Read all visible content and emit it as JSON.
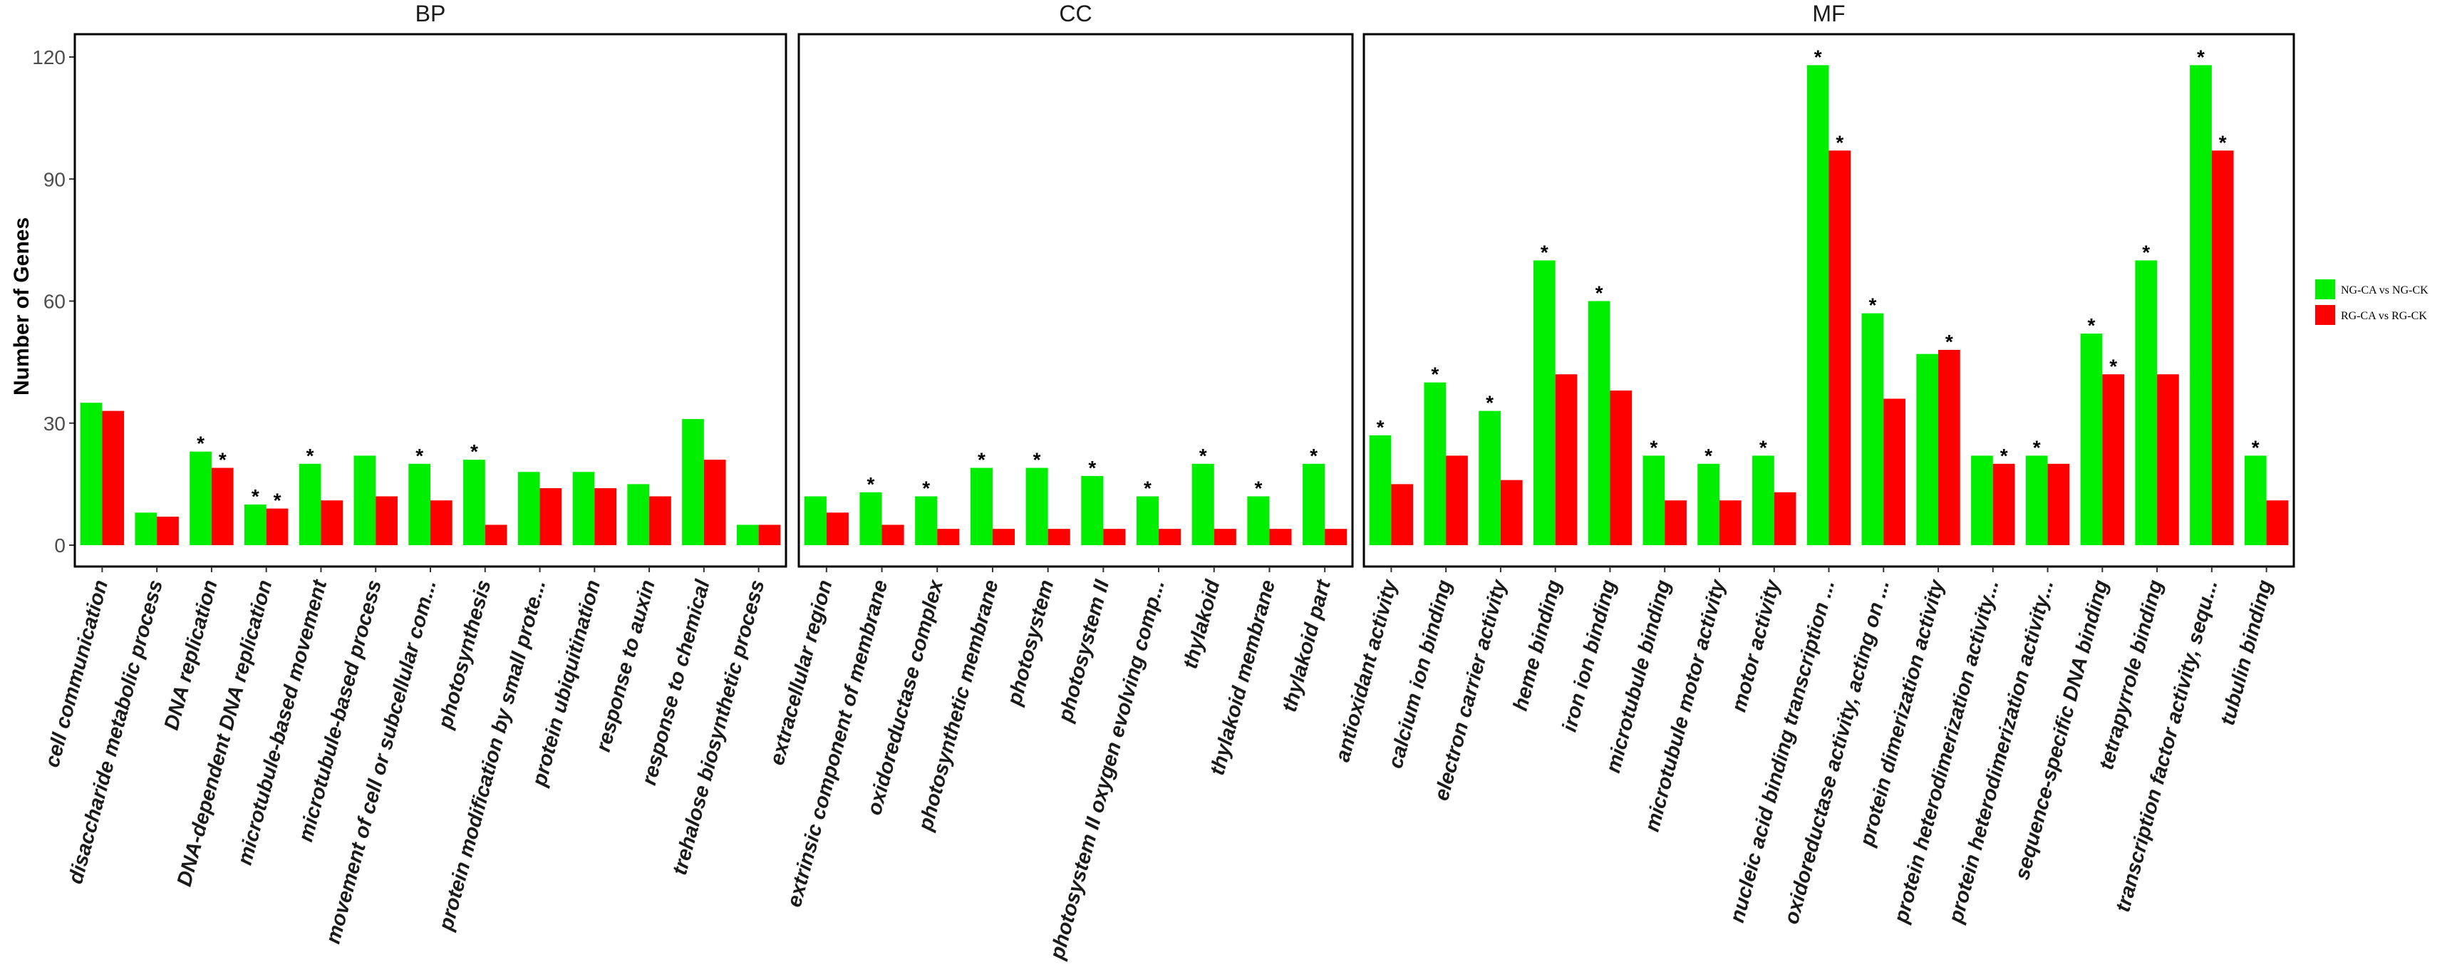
{
  "chart_data": {
    "type": "bar",
    "ylabel": "Number of Genes",
    "ylim": [
      0,
      120
    ],
    "yticks": [
      0,
      30,
      60,
      90,
      120
    ],
    "grid": false,
    "legend_position": "right",
    "series_meta": [
      {
        "name": "NG-CA vs NG-CK",
        "color": "#00ee00"
      },
      {
        "name": "RG-CA vs RG-CK",
        "color": "#ff0000"
      }
    ],
    "panels": [
      {
        "label": "BP",
        "categories": [
          "cell communication",
          "disaccharide metabolic process",
          "DNA replication",
          "DNA-dependent DNA replication",
          "microtubule-based movement",
          "microtubule-based process",
          "movement of cell or subcellular com...",
          "photosynthesis",
          "protein modification by small prote...",
          "protein ubiquitination",
          "response to auxin",
          "response to chemical",
          "trehalose biosynthetic process"
        ],
        "series": [
          {
            "name": "NG-CA vs NG-CK",
            "values": [
              35,
              8,
              23,
              10,
              20,
              22,
              20,
              21,
              18,
              18,
              15,
              31,
              5
            ],
            "significant": [
              false,
              false,
              true,
              true,
              true,
              false,
              true,
              true,
              false,
              false,
              false,
              false,
              false
            ]
          },
          {
            "name": "RG-CA vs RG-CK",
            "values": [
              33,
              7,
              19,
              9,
              11,
              12,
              11,
              5,
              14,
              14,
              12,
              21,
              5
            ],
            "significant": [
              false,
              false,
              true,
              true,
              false,
              false,
              false,
              false,
              false,
              false,
              false,
              false,
              false
            ]
          }
        ]
      },
      {
        "label": "CC",
        "categories": [
          "extracellular region",
          "extrinsic component of membrane",
          "oxidoreductase complex",
          "photosynthetic membrane",
          "photosystem",
          "photosystem II",
          "photosystem II oxygen evolving comp...",
          "thylakoid",
          "thylakoid membrane",
          "thylakoid part"
        ],
        "series": [
          {
            "name": "NG-CA vs NG-CK",
            "values": [
              12,
              13,
              12,
              19,
              19,
              17,
              12,
              20,
              12,
              20
            ],
            "significant": [
              false,
              true,
              true,
              true,
              true,
              true,
              true,
              true,
              true,
              true
            ]
          },
          {
            "name": "RG-CA vs RG-CK",
            "values": [
              8,
              5,
              4,
              4,
              4,
              4,
              4,
              4,
              4,
              4
            ],
            "significant": [
              false,
              false,
              false,
              false,
              false,
              false,
              false,
              false,
              false,
              false
            ]
          }
        ]
      },
      {
        "label": "MF",
        "categories": [
          "antioxidant activity",
          "calcium ion binding",
          "electron carrier activity",
          "heme binding",
          "iron ion binding",
          "microtubule binding",
          "microtubule motor activity",
          "motor activity",
          "nucleic acid binding transcription ...",
          "oxidoreductase activity, acting on ...",
          "protein dimerization activity",
          "protein heterodimerization activity...",
          "protein heterodimerization activity...",
          "sequence-specific DNA binding",
          "tetrapyrrole binding",
          "transcription factor activity, sequ...",
          "tubulin binding"
        ],
        "series": [
          {
            "name": "NG-CA vs NG-CK",
            "values": [
              27,
              40,
              33,
              70,
              60,
              22,
              20,
              22,
              118,
              57,
              47,
              22,
              22,
              52,
              70,
              118,
              22
            ],
            "significant": [
              true,
              true,
              true,
              true,
              true,
              true,
              true,
              true,
              true,
              true,
              false,
              false,
              true,
              true,
              true,
              true,
              true
            ]
          },
          {
            "name": "RG-CA vs RG-CK",
            "values": [
              15,
              22,
              16,
              42,
              38,
              11,
              11,
              13,
              97,
              36,
              48,
              20,
              20,
              42,
              42,
              97,
              11
            ],
            "significant": [
              false,
              false,
              false,
              false,
              false,
              false,
              false,
              false,
              true,
              false,
              true,
              true,
              false,
              true,
              false,
              true,
              false
            ]
          }
        ]
      }
    ],
    "significance_marker": "*"
  }
}
